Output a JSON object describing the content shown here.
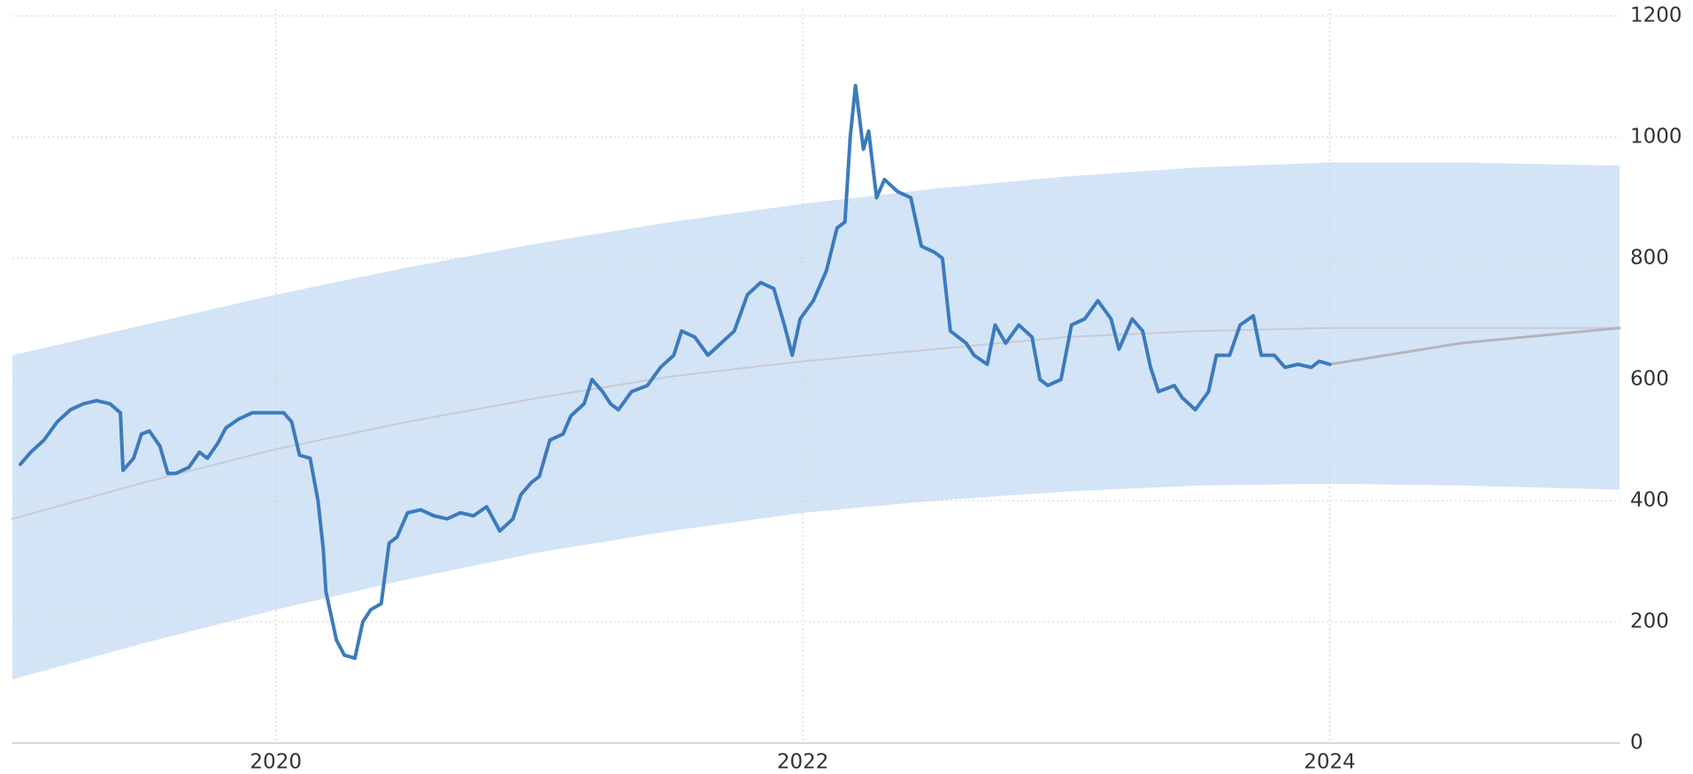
{
  "chart_data": {
    "type": "line",
    "xlim": [
      2019.0,
      2025.1
    ],
    "xticks": [
      2020,
      2022,
      2024
    ],
    "ylim": [
      0,
      1200
    ],
    "yticks": [
      0,
      200,
      400,
      600,
      800,
      1000,
      1200
    ],
    "grid": true,
    "band": {
      "color": "#d4e4f7",
      "x": [
        2019.0,
        2019.5,
        2020.0,
        2020.5,
        2021.0,
        2021.5,
        2022.0,
        2022.5,
        2023.0,
        2023.5,
        2024.0,
        2024.5,
        2025.1
      ],
      "upper": [
        640,
        690,
        740,
        785,
        825,
        860,
        890,
        915,
        935,
        950,
        958,
        958,
        953
      ],
      "lower": [
        105,
        165,
        220,
        270,
        315,
        350,
        380,
        400,
        415,
        425,
        428,
        425,
        418
      ]
    },
    "series": [
      {
        "color": "#c9cad3",
        "width": 2,
        "x": [
          2019.0,
          2019.5,
          2020.0,
          2020.5,
          2021.0,
          2021.5,
          2022.0,
          2022.5,
          2023.0,
          2023.5,
          2024.0,
          2024.5,
          2025.1
        ],
        "values": [
          370,
          430,
          485,
          530,
          570,
          605,
          630,
          650,
          670,
          680,
          685,
          685,
          685
        ]
      },
      {
        "color": "#b3b4bd",
        "width": 3,
        "x": [
          2024.0,
          2024.5,
          2025.1
        ],
        "values": [
          625,
          660,
          685
        ]
      },
      {
        "color": "#3b7bbd",
        "width": 4,
        "x": [
          2019.03,
          2019.07,
          2019.12,
          2019.17,
          2019.22,
          2019.27,
          2019.32,
          2019.37,
          2019.41,
          2019.42,
          2019.46,
          2019.49,
          2019.52,
          2019.56,
          2019.59,
          2019.62,
          2019.67,
          2019.71,
          2019.74,
          2019.78,
          2019.81,
          2019.86,
          2019.91,
          2019.96,
          2020.03,
          2020.06,
          2020.09,
          2020.13,
          2020.16,
          2020.18,
          2020.19,
          2020.23,
          2020.26,
          2020.3,
          2020.33,
          2020.36,
          2020.4,
          2020.43,
          2020.46,
          2020.5,
          2020.55,
          2020.6,
          2020.65,
          2020.7,
          2020.75,
          2020.8,
          2020.85,
          2020.9,
          2020.93,
          2020.97,
          2021.0,
          2021.04,
          2021.09,
          2021.12,
          2021.17,
          2021.2,
          2021.24,
          2021.27,
          2021.3,
          2021.35,
          2021.41,
          2021.46,
          2021.51,
          2021.54,
          2021.59,
          2021.64,
          2021.69,
          2021.74,
          2021.79,
          2021.84,
          2021.89,
          2021.93,
          2021.96,
          2021.99,
          2022.04,
          2022.09,
          2022.13,
          2022.16,
          2022.18,
          2022.2,
          2022.23,
          2022.25,
          2022.28,
          2022.31,
          2022.36,
          2022.41,
          2022.45,
          2022.5,
          2022.53,
          2022.56,
          2022.62,
          2022.65,
          2022.7,
          2022.73,
          2022.77,
          2022.82,
          2022.87,
          2022.9,
          2022.93,
          2022.98,
          2023.02,
          2023.07,
          2023.12,
          2023.17,
          2023.2,
          2023.25,
          2023.29,
          2023.32,
          2023.35,
          2023.41,
          2023.44,
          2023.49,
          2023.54,
          2023.57,
          2023.62,
          2023.66,
          2023.71,
          2023.74,
          2023.79,
          2023.83,
          2023.88,
          2023.93,
          2023.96,
          2024.0
        ],
        "values": [
          460,
          480,
          500,
          530,
          550,
          560,
          565,
          560,
          545,
          450,
          470,
          510,
          515,
          490,
          445,
          445,
          455,
          480,
          470,
          495,
          520,
          535,
          545,
          545,
          545,
          530,
          475,
          470,
          400,
          320,
          250,
          170,
          145,
          140,
          200,
          220,
          230,
          330,
          340,
          380,
          385,
          375,
          370,
          380,
          375,
          390,
          350,
          370,
          410,
          430,
          440,
          500,
          510,
          540,
          560,
          600,
          580,
          560,
          550,
          580,
          590,
          620,
          640,
          680,
          670,
          640,
          660,
          680,
          740,
          760,
          750,
          690,
          640,
          700,
          730,
          780,
          850,
          860,
          1000,
          1085,
          980,
          1010,
          900,
          930,
          910,
          900,
          820,
          810,
          800,
          680,
          660,
          640,
          625,
          690,
          660,
          690,
          670,
          600,
          590,
          600,
          690,
          700,
          730,
          700,
          650,
          700,
          680,
          620,
          580,
          590,
          570,
          550,
          580,
          640,
          640,
          690,
          705,
          640,
          640,
          620,
          625,
          620,
          630,
          625
        ]
      }
    ]
  }
}
